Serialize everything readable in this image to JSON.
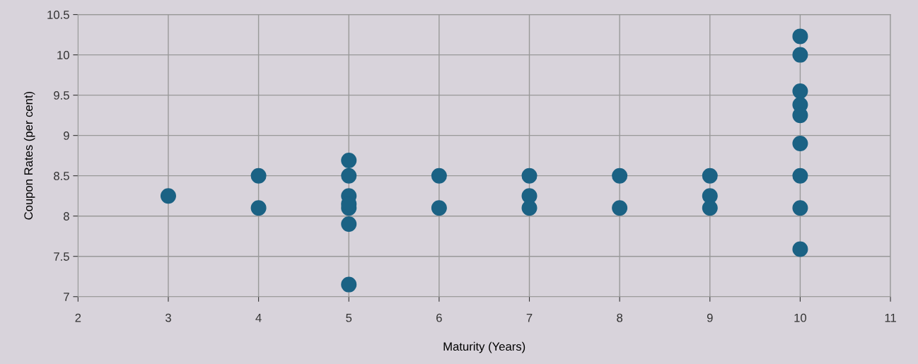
{
  "chart_data": {
    "type": "scatter",
    "xlabel": "Maturity (Years)",
    "ylabel": "Coupon Rates (per cent)",
    "x": [
      3,
      4,
      4,
      5,
      5,
      5,
      5,
      5,
      5,
      5,
      6,
      6,
      7,
      7,
      7,
      8,
      8,
      9,
      9,
      9,
      10,
      10,
      10,
      10,
      10,
      10,
      10,
      10,
      10
    ],
    "series": [
      {
        "color": "#1b6284",
        "values": [
          8.25,
          8.5,
          8.1,
          8.69,
          8.5,
          8.25,
          8.1,
          8.15,
          7.9,
          7.15,
          8.5,
          8.1,
          8.5,
          8.25,
          8.1,
          8.5,
          8.1,
          8.5,
          8.25,
          8.1,
          10.23,
          10.0,
          9.55,
          9.38,
          9.25,
          8.9,
          8.5,
          8.1,
          7.59
        ]
      }
    ],
    "xlim": [
      2,
      11
    ],
    "xticks": [
      2,
      3,
      4,
      5,
      6,
      7,
      8,
      9,
      10,
      11
    ],
    "ylim": [
      7,
      10.5
    ],
    "yticks": [
      7,
      7.5,
      8,
      8.5,
      9,
      9.5,
      10,
      10.5
    ],
    "grid": true,
    "marker": "circle",
    "legend": false
  }
}
